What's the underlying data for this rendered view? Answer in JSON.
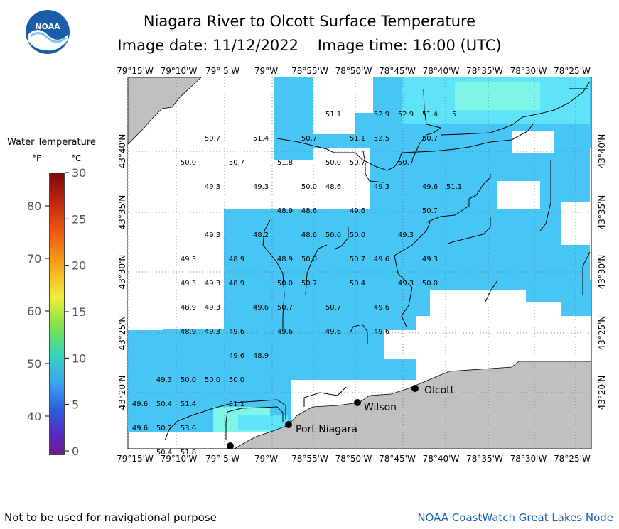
{
  "header": {
    "title": "Niagara River to Olcott Surface Temperature",
    "subtitle": "Image date: 11/12/2022    Image time: 16:00 (UTC)",
    "logo_text": "NOAA"
  },
  "legend": {
    "title": "Water Temperature",
    "unit_f": "°F",
    "unit_c": "°C",
    "f_ticks": [
      "80",
      "70",
      "60",
      "50",
      "40"
    ],
    "c_ticks": [
      "30",
      "25",
      "20",
      "15",
      "10",
      "5",
      "0"
    ]
  },
  "axes": {
    "lon_labels": [
      "79°15'W",
      "79°10'W",
      "79° 5'W",
      "79°W",
      "78°55'W",
      "78°50'W",
      "78°45'W",
      "78°40'W",
      "78°35'W",
      "78°30'W",
      "78°25'W"
    ],
    "lat_labels": [
      "43°40'N",
      "43°35'N",
      "43°30'N",
      "43°25'N",
      "43°20'N"
    ]
  },
  "places": [
    "Olcott",
    "Wilson",
    "Port Niagara"
  ],
  "temperatures": [
    {
      "v": "51.1",
      "gx": 8,
      "gy": 1
    },
    {
      "v": "52.9",
      "gx": 10,
      "gy": 1
    },
    {
      "v": "52.9",
      "gx": 11,
      "gy": 1
    },
    {
      "v": "51.4",
      "gx": 12,
      "gy": 1
    },
    {
      "v": "5",
      "gx": 13,
      "gy": 1
    },
    {
      "v": "50.7",
      "gx": 3,
      "gy": 2
    },
    {
      "v": "51.4",
      "gx": 5,
      "gy": 2
    },
    {
      "v": "50.7",
      "gx": 7,
      "gy": 2
    },
    {
      "v": "51.1",
      "gx": 9,
      "gy": 2
    },
    {
      "v": "52.5",
      "gx": 10,
      "gy": 2
    },
    {
      "v": "50.7",
      "gx": 12,
      "gy": 2
    },
    {
      "v": "50.0",
      "gx": 2,
      "gy": 3
    },
    {
      "v": "50.7",
      "gx": 4,
      "gy": 3
    },
    {
      "v": "51.8",
      "gx": 6,
      "gy": 3
    },
    {
      "v": "50.0",
      "gx": 8,
      "gy": 3
    },
    {
      "v": "50.7",
      "gx": 9,
      "gy": 3
    },
    {
      "v": "50.7",
      "gx": 11,
      "gy": 3
    },
    {
      "v": "49.3",
      "gx": 3,
      "gy": 4
    },
    {
      "v": "49.3",
      "gx": 5,
      "gy": 4
    },
    {
      "v": "50.0",
      "gx": 7,
      "gy": 4
    },
    {
      "v": "48.6",
      "gx": 8,
      "gy": 4
    },
    {
      "v": "49.3",
      "gx": 10,
      "gy": 4
    },
    {
      "v": "49.6",
      "gx": 12,
      "gy": 4
    },
    {
      "v": "51.1",
      "gx": 13,
      "gy": 4
    },
    {
      "v": "48.9",
      "gx": 6,
      "gy": 5
    },
    {
      "v": "48.6",
      "gx": 7,
      "gy": 5
    },
    {
      "v": "49.6",
      "gx": 9,
      "gy": 5
    },
    {
      "v": "50.7",
      "gx": 12,
      "gy": 5
    },
    {
      "v": "49.3",
      "gx": 3,
      "gy": 6
    },
    {
      "v": "48.2",
      "gx": 5,
      "gy": 6
    },
    {
      "v": "48.6",
      "gx": 7,
      "gy": 6
    },
    {
      "v": "50.0",
      "gx": 8,
      "gy": 6
    },
    {
      "v": "50.0",
      "gx": 9,
      "gy": 6
    },
    {
      "v": "49.3",
      "gx": 11,
      "gy": 6
    },
    {
      "v": "49.3",
      "gx": 2,
      "gy": 7
    },
    {
      "v": "48.9",
      "gx": 4,
      "gy": 7
    },
    {
      "v": "48.9",
      "gx": 6,
      "gy": 7
    },
    {
      "v": "50.0",
      "gx": 7,
      "gy": 7
    },
    {
      "v": "50.7",
      "gx": 9,
      "gy": 7
    },
    {
      "v": "49.6",
      "gx": 10,
      "gy": 7
    },
    {
      "v": "49.3",
      "gx": 12,
      "gy": 7
    },
    {
      "v": "49.3",
      "gx": 2,
      "gy": 8
    },
    {
      "v": "49.3",
      "gx": 3,
      "gy": 8
    },
    {
      "v": "48.9",
      "gx": 4,
      "gy": 8
    },
    {
      "v": "50.0",
      "gx": 6,
      "gy": 8
    },
    {
      "v": "50.7",
      "gx": 7,
      "gy": 8
    },
    {
      "v": "50.4",
      "gx": 9,
      "gy": 8
    },
    {
      "v": "49.3",
      "gx": 11,
      "gy": 8
    },
    {
      "v": "50.0",
      "gx": 12,
      "gy": 8
    },
    {
      "v": "48.9",
      "gx": 2,
      "gy": 9
    },
    {
      "v": "49.3",
      "gx": 3,
      "gy": 9
    },
    {
      "v": "49.6",
      "gx": 5,
      "gy": 9
    },
    {
      "v": "50.7",
      "gx": 6,
      "gy": 9
    },
    {
      "v": "50.7",
      "gx": 8,
      "gy": 9
    },
    {
      "v": "49.6",
      "gx": 10,
      "gy": 9
    },
    {
      "v": "48.9",
      "gx": 2,
      "gy": 10
    },
    {
      "v": "49.3",
      "gx": 3,
      "gy": 10
    },
    {
      "v": "49.6",
      "gx": 4,
      "gy": 10
    },
    {
      "v": "49.6",
      "gx": 6,
      "gy": 10
    },
    {
      "v": "49.6",
      "gx": 8,
      "gy": 10
    },
    {
      "v": "49.6",
      "gx": 10,
      "gy": 10
    },
    {
      "v": "49.6",
      "gx": 4,
      "gy": 11
    },
    {
      "v": "48.9",
      "gx": 5,
      "gy": 11
    },
    {
      "v": "49.3",
      "gx": 1,
      "gy": 12
    },
    {
      "v": "50.0",
      "gx": 2,
      "gy": 12
    },
    {
      "v": "50.0",
      "gx": 3,
      "gy": 12
    },
    {
      "v": "50.0",
      "gx": 4,
      "gy": 12
    },
    {
      "v": "49.6",
      "gx": 0,
      "gy": 13
    },
    {
      "v": "50.4",
      "gx": 1,
      "gy": 13
    },
    {
      "v": "51.4",
      "gx": 2,
      "gy": 13
    },
    {
      "v": "51.1",
      "gx": 4,
      "gy": 13
    },
    {
      "v": "49.6",
      "gx": 0,
      "gy": 14
    },
    {
      "v": "50.7",
      "gx": 1,
      "gy": 14
    },
    {
      "v": "53.6",
      "gx": 2,
      "gy": 14
    },
    {
      "v": "50.4",
      "gx": 1,
      "gy": 15
    },
    {
      "v": "51.8",
      "gx": 2,
      "gy": 15
    }
  ],
  "footer": {
    "left": "Not to be used for navigational purpose",
    "right": "NOAA CoastWatch Great Lakes Node"
  },
  "colors": {
    "water_main": "#47c6f5",
    "water_light": "#5fe3f8",
    "water_warm": "#7ff5e8",
    "land": "#c0c0c0",
    "link_blue": "#1a5fb4"
  }
}
